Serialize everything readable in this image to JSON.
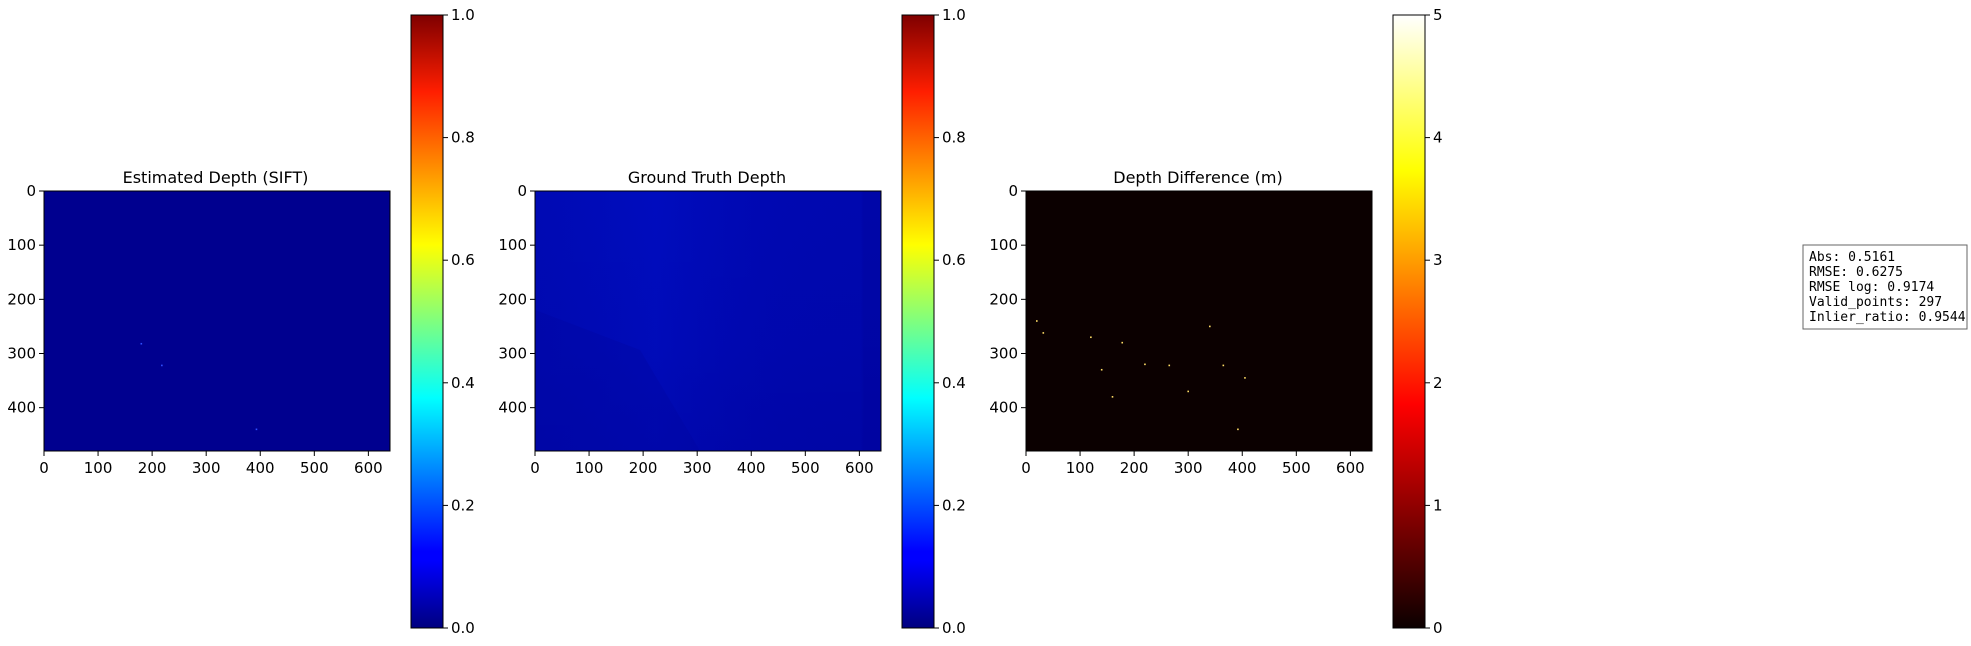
{
  "chart_data": [
    {
      "type": "heatmap",
      "title": "Estimated Depth (SIFT)",
      "xlim": [
        0,
        640
      ],
      "ylim": [
        480,
        0
      ],
      "x_ticks": [
        0,
        100,
        200,
        300,
        400,
        500,
        600
      ],
      "y_ticks": [
        0,
        100,
        200,
        300,
        400
      ],
      "cmap": "jet",
      "base_color": "#00008f",
      "sparse_points": [
        [
          180,
          282
        ],
        [
          218,
          322
        ],
        [
          393,
          440
        ]
      ],
      "colorbar": {
        "min": 0.0,
        "max": 1.0,
        "cmap": "jet",
        "ticks": [
          "0.0",
          "0.2",
          "0.4",
          "0.6",
          "0.8",
          "1.0"
        ]
      }
    },
    {
      "type": "heatmap",
      "title": "Ground Truth Depth",
      "xlim": [
        0,
        640
      ],
      "ylim": [
        480,
        0
      ],
      "x_ticks": [
        0,
        100,
        200,
        300,
        400,
        500,
        600
      ],
      "y_ticks": [
        0,
        100,
        200,
        300,
        400
      ],
      "cmap": "jet",
      "base_color": "#0008b0",
      "colorbar": {
        "min": 0.0,
        "max": 1.0,
        "cmap": "jet",
        "ticks": [
          "0.0",
          "0.2",
          "0.4",
          "0.6",
          "0.8",
          "1.0"
        ]
      }
    },
    {
      "type": "heatmap",
      "title": "Depth Difference (m)",
      "xlim": [
        0,
        640
      ],
      "ylim": [
        480,
        0
      ],
      "x_ticks": [
        0,
        100,
        200,
        300,
        400,
        500,
        600
      ],
      "y_ticks": [
        0,
        100,
        200,
        300,
        400
      ],
      "cmap": "hot",
      "base_color": "#0b0000",
      "sparse_points": [
        [
          20,
          240
        ],
        [
          32,
          262
        ],
        [
          120,
          270
        ],
        [
          178,
          280
        ],
        [
          220,
          320
        ],
        [
          265,
          322
        ],
        [
          300,
          370
        ],
        [
          365,
          322
        ],
        [
          392,
          440
        ],
        [
          405,
          345
        ],
        [
          340,
          250
        ],
        [
          140,
          330
        ],
        [
          160,
          380
        ]
      ],
      "colorbar": {
        "min": 0,
        "max": 5,
        "cmap": "hot",
        "ticks": [
          "0",
          "1",
          "2",
          "3",
          "4",
          "5"
        ]
      }
    }
  ],
  "metrics_box": {
    "lines": [
      "Abs: 0.5161",
      "RMSE: 0.6275",
      "RMSE log: 0.9174",
      "Valid_points: 297",
      "Inlier_ratio: 0.9544"
    ]
  }
}
